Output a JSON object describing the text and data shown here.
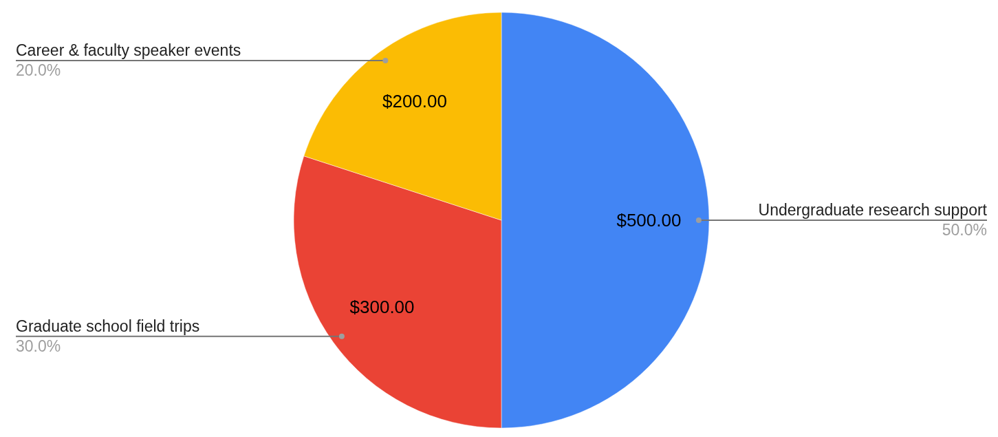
{
  "chart_data": {
    "type": "pie",
    "categories": [
      "Undergraduate research support",
      "Graduate school field trips",
      "Career & faculty speaker events"
    ],
    "values": [
      500,
      300,
      200
    ],
    "colors": [
      "#4285f4",
      "#ea4335",
      "#fbbc04"
    ],
    "value_labels": [
      "$500.00",
      "$300.00",
      "$200.00"
    ],
    "annotations": [
      "50.0%",
      "30.0%",
      "20.0%"
    ],
    "legend": false
  }
}
